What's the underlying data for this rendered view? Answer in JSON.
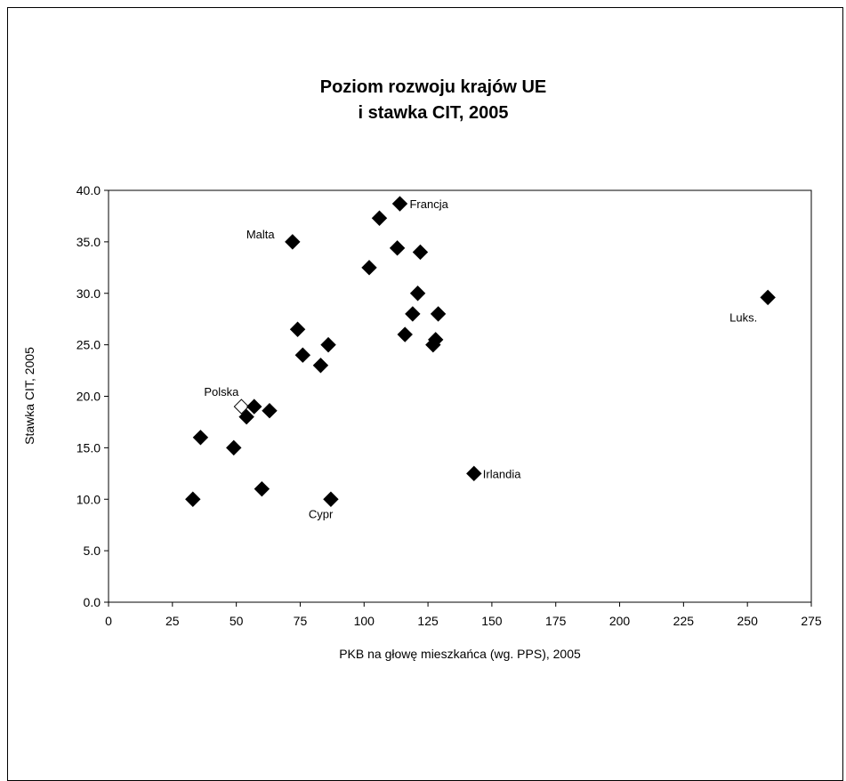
{
  "chart_data": {
    "type": "scatter",
    "title": [
      "Poziom rozwoju krajów UE",
      "i stawka CIT, 2005"
    ],
    "xlabel": "PKB na głowę mieszkańca (wg. PPS), 2005",
    "ylabel": "Stawka CIT, 2005",
    "xlim": [
      0,
      275
    ],
    "ylim": [
      0,
      40
    ],
    "xticks": [
      "0",
      "25",
      "50",
      "75",
      "100",
      "125",
      "150",
      "175",
      "200",
      "225",
      "250",
      "275"
    ],
    "yticks": [
      "0.0",
      "5.0",
      "10.0",
      "15.0",
      "20.0",
      "25.0",
      "30.0",
      "35.0",
      "40.0"
    ],
    "grid": false,
    "marker": "diamond",
    "points": [
      {
        "x": 33,
        "y": 10.0
      },
      {
        "x": 36,
        "y": 16.0
      },
      {
        "x": 49,
        "y": 15.0
      },
      {
        "x": 52,
        "y": 19.0,
        "label": "Polska",
        "hollow": true
      },
      {
        "x": 54,
        "y": 18.0
      },
      {
        "x": 57,
        "y": 19.0
      },
      {
        "x": 60,
        "y": 11.0
      },
      {
        "x": 63,
        "y": 18.6
      },
      {
        "x": 72,
        "y": 35.0,
        "label": "Malta"
      },
      {
        "x": 74,
        "y": 26.5
      },
      {
        "x": 76,
        "y": 24.0
      },
      {
        "x": 83,
        "y": 23.0
      },
      {
        "x": 86,
        "y": 25.0
      },
      {
        "x": 87,
        "y": 10.0,
        "label": "Cypr"
      },
      {
        "x": 102,
        "y": 32.5
      },
      {
        "x": 106,
        "y": 37.3
      },
      {
        "x": 113,
        "y": 34.4
      },
      {
        "x": 114,
        "y": 38.7,
        "label": "Francja"
      },
      {
        "x": 116,
        "y": 26.0
      },
      {
        "x": 119,
        "y": 28.0
      },
      {
        "x": 121,
        "y": 30.0
      },
      {
        "x": 122,
        "y": 34.0
      },
      {
        "x": 127,
        "y": 25.0
      },
      {
        "x": 128,
        "y": 25.5
      },
      {
        "x": 129,
        "y": 28.0
      },
      {
        "x": 143,
        "y": 12.5,
        "label": "Irlandia"
      },
      {
        "x": 258,
        "y": 29.6,
        "label": "Luks."
      }
    ],
    "colors": {
      "marker": "#000000",
      "hollow_fill": "#ffffff"
    }
  }
}
